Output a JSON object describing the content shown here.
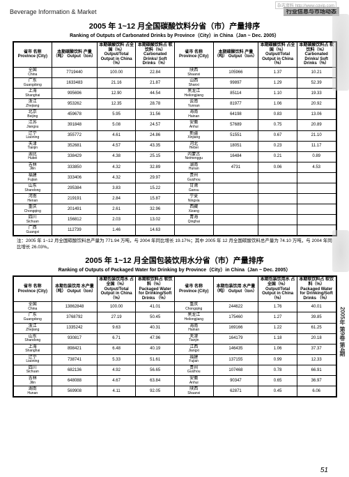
{
  "top_url": "杂志资料 http://www.cqvip.com",
  "header_left": "Beverage Information & Market",
  "header_badge": "行业信息与市场动态",
  "side_vertical": "2005年 第9卷 第4期",
  "table1": {
    "title_cn": "2005 年 1~12 月全国碳酸饮料分省（市）产量排序",
    "title_en": "Ranking of Outputs of Carbonated Drinks by Province（City）in China（Jan ~ Dec. 2005）",
    "headers": {
      "prov_cn": "省市\n名称\nProvince\n(City)",
      "output_cn": "本期碳酸饮料\n产量（吨）\nOutput（ton）",
      "pct_cn": "本期碳酸饮料\n占全国（%）\nOutput/Total Output\nin China（%）",
      "soft_cn": "本期碳酸饮料占\n软饮料（%）\nCarbonated Drinks/\nSoft Drinks（%）"
    },
    "rows_left": [
      {
        "p_cn": "全国",
        "p_en": "China",
        "out": "7719440",
        "pct": "100.00",
        "soft": "22.84"
      },
      {
        "p_cn": "广东",
        "p_en": "Guangdong",
        "out": "1633483",
        "pct": "21.16",
        "soft": "21.87"
      },
      {
        "p_cn": "上海",
        "p_en": "Shanghai",
        "out": "995696",
        "pct": "12.90",
        "soft": "44.54"
      },
      {
        "p_cn": "浙江",
        "p_en": "Zhejiang",
        "out": "953262",
        "pct": "12.35",
        "soft": "28.78"
      },
      {
        "p_cn": "北京",
        "p_en": "Beijing",
        "out": "459678",
        "pct": "5.95",
        "soft": "31.56"
      },
      {
        "p_cn": "江苏",
        "p_en": "Jiangsu",
        "out": "391848",
        "pct": "5.08",
        "soft": "24.57"
      },
      {
        "p_cn": "辽宁",
        "p_en": "Liaoning",
        "out": "355772",
        "pct": "4.61",
        "soft": "24.86"
      },
      {
        "p_cn": "天津",
        "p_en": "Tianjin",
        "out": "352681",
        "pct": "4.57",
        "soft": "43.35"
      },
      {
        "p_cn": "湖北",
        "p_en": "Hubei",
        "out": "338429",
        "pct": "4.38",
        "soft": "25.15"
      },
      {
        "p_cn": "吉林",
        "p_en": "Jilin",
        "out": "333850",
        "pct": "4.32",
        "soft": "32.89"
      },
      {
        "p_cn": "福建",
        "p_en": "Fujian",
        "out": "333406",
        "pct": "4.32",
        "soft": "29.97"
      },
      {
        "p_cn": "山东",
        "p_en": "Shandong",
        "out": "295384",
        "pct": "3.83",
        "soft": "15.22"
      },
      {
        "p_cn": "河南",
        "p_en": "Henan",
        "out": "219191",
        "pct": "2.84",
        "soft": "15.87"
      },
      {
        "p_cn": "重庆",
        "p_en": "Chongqing",
        "out": "201491",
        "pct": "2.61",
        "soft": "32.96"
      },
      {
        "p_cn": "四川",
        "p_en": "Sichuan",
        "out": "156812",
        "pct": "2.03",
        "soft": "13.02"
      },
      {
        "p_cn": "广西",
        "p_en": "Guangxi",
        "out": "112739",
        "pct": "1.46",
        "soft": "14.63"
      }
    ],
    "rows_right": [
      {
        "p_cn": "陕西",
        "p_en": "Shaanxi",
        "out": "105966",
        "pct": "1.37",
        "soft": "10.21"
      },
      {
        "p_cn": "山西",
        "p_en": "Shanxi",
        "out": "99897",
        "pct": "1.29",
        "soft": "52.39"
      },
      {
        "p_cn": "黑龙江",
        "p_en": "Heilongjiang",
        "out": "85114",
        "pct": "1.10",
        "soft": "19.33"
      },
      {
        "p_cn": "云南",
        "p_en": "Yunnan",
        "out": "81977",
        "pct": "1.06",
        "soft": "20.92"
      },
      {
        "p_cn": "海南",
        "p_en": "Hainan",
        "out": "64198",
        "pct": "0.83",
        "soft": "13.06"
      },
      {
        "p_cn": "安徽",
        "p_en": "Anhui",
        "out": "57689",
        "pct": "0.75",
        "soft": "20.89"
      },
      {
        "p_cn": "新疆",
        "p_en": "Xinjiang",
        "out": "51551",
        "pct": "0.67",
        "soft": "21.10"
      },
      {
        "p_cn": "河北",
        "p_en": "Hebei",
        "out": "18051",
        "pct": "0.23",
        "soft": "11.17"
      },
      {
        "p_cn": "内蒙古",
        "p_en": "Neimenggu",
        "out": "16484",
        "pct": "0.21",
        "soft": "0.89"
      },
      {
        "p_cn": "湖南",
        "p_en": "Hunan",
        "out": "4731",
        "pct": "0.06",
        "soft": "4.53"
      },
      {
        "p_cn": "贵州",
        "p_en": "Guizhou",
        "out": "",
        "pct": "",
        "soft": ""
      },
      {
        "p_cn": "甘肃",
        "p_en": "Gansu",
        "out": "",
        "pct": "",
        "soft": ""
      },
      {
        "p_cn": "宁夏",
        "p_en": "Ningxia",
        "out": "",
        "pct": "",
        "soft": ""
      },
      {
        "p_cn": "西藏",
        "p_en": "Xizang",
        "out": "",
        "pct": "",
        "soft": ""
      },
      {
        "p_cn": "青海",
        "p_en": "Qinghai",
        "out": "",
        "pct": "",
        "soft": ""
      }
    ]
  },
  "note1": "注：2005 年 1~12 月全国碳酸饮料总产量为 771.94 万吨，与 2004 年同比增长 19.17%；其中 2005 年 12 月全国碳酸饮料总产量为 74.10 万吨，与 2004 年同比增长 26.03%。",
  "table2": {
    "title_cn": "2005 年 1~12 月全国包装饮用水分省（市）产量排序",
    "title_en": "Ranking of Outputs of Packaged Water for Drinking by Province（City）in China（Jan ~ Dec. 2005）",
    "headers": {
      "prov_cn": "省市\n名称\nProvince\n(City)",
      "output_cn": "本期包装饮用\n水产量（吨）\nOutput（ton）",
      "pct_cn": "本期包装饮用水\n占全国（%）\nOutput/Total Output\nin China（%）",
      "soft_cn": "本期软饮料占\n软饮料（%）\nPackaged Water for\nDrinking/Soft Drinks\n（%）"
    },
    "rows_left": [
      {
        "p_cn": "全国",
        "p_en": "China",
        "out": "13862848",
        "pct": "100.00",
        "soft": "41.01"
      },
      {
        "p_cn": "广东",
        "p_en": "Guangdong",
        "out": "3768792",
        "pct": "27.19",
        "soft": "50.45"
      },
      {
        "p_cn": "浙江",
        "p_en": "Zhejiang",
        "out": "1335242",
        "pct": "9.63",
        "soft": "40.31"
      },
      {
        "p_cn": "山东",
        "p_en": "Shandong",
        "out": "930817",
        "pct": "6.71",
        "soft": "47.96"
      },
      {
        "p_cn": "上海",
        "p_en": "Shanghai",
        "out": "898421",
        "pct": "6.48",
        "soft": "40.19"
      },
      {
        "p_cn": "辽宁",
        "p_en": "Liaoning",
        "out": "738741",
        "pct": "5.33",
        "soft": "51.61"
      },
      {
        "p_cn": "四川",
        "p_en": "Sichuan",
        "out": "682136",
        "pct": "4.92",
        "soft": "56.65"
      },
      {
        "p_cn": "吉林",
        "p_en": "Jilin",
        "out": "648088",
        "pct": "4.67",
        "soft": "63.84"
      },
      {
        "p_cn": "湖南",
        "p_en": "Hunan",
        "out": "569908",
        "pct": "4.11",
        "soft": "92.05"
      }
    ],
    "rows_right": [
      {
        "p_cn": "重庆",
        "p_en": "Chongqing",
        "out": "244622",
        "pct": "1.76",
        "soft": "40.01"
      },
      {
        "p_cn": "黑龙江",
        "p_en": "Heilongjiang",
        "out": "175460",
        "pct": "1.27",
        "soft": "39.85"
      },
      {
        "p_cn": "海南",
        "p_en": "Hainan",
        "out": "169166",
        "pct": "1.22",
        "soft": "61.25"
      },
      {
        "p_cn": "天津",
        "p_en": "Tianjin",
        "out": "164179",
        "pct": "1.18",
        "soft": "20.18"
      },
      {
        "p_cn": "江西",
        "p_en": "Jiangxi",
        "out": "146435",
        "pct": "1.06",
        "soft": "37.37"
      },
      {
        "p_cn": "福建",
        "p_en": "Fujian",
        "out": "137155",
        "pct": "0.99",
        "soft": "12.33"
      },
      {
        "p_cn": "贵州",
        "p_en": "Guizhou",
        "out": "107468",
        "pct": "0.78",
        "soft": "66.91"
      },
      {
        "p_cn": "安徽",
        "p_en": "Anhui",
        "out": "90347",
        "pct": "0.65",
        "soft": "36.97"
      },
      {
        "p_cn": "陕西",
        "p_en": "Shaanxi",
        "out": "62871",
        "pct": "0.45",
        "soft": "6.06"
      }
    ]
  },
  "page_number": "51"
}
